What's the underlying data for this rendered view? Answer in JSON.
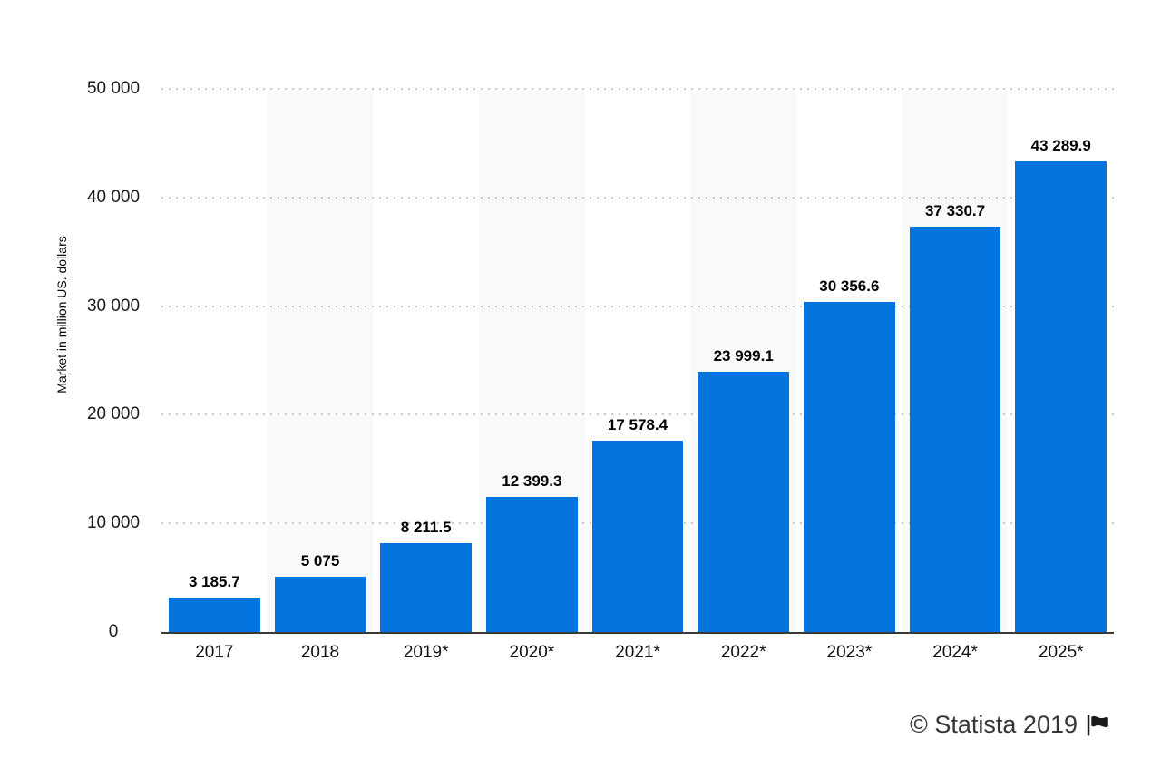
{
  "chart_data": {
    "type": "bar",
    "title": "",
    "categories": [
      "2017",
      "2018",
      "2019*",
      "2020*",
      "2021*",
      "2022*",
      "2023*",
      "2024*",
      "2025*"
    ],
    "values": [
      3185.7,
      5075,
      8211.5,
      12399.3,
      17578.4,
      23999.1,
      30356.6,
      37330.7,
      43289.9
    ],
    "value_labels": [
      "3 185.7",
      "5 075",
      "8 211.5",
      "12 399.3",
      "17 578.4",
      "23 999.1",
      "30 356.6",
      "37 330.7",
      "43 289.9"
    ],
    "xlabel": "",
    "ylabel": "Market in million US. dollars",
    "ylim": [
      0,
      50000
    ],
    "yticks": [
      {
        "value": 0,
        "label": "0"
      },
      {
        "value": 10000,
        "label": "10 000"
      },
      {
        "value": 20000,
        "label": "20 000"
      },
      {
        "value": 30000,
        "label": "30 000"
      },
      {
        "value": 40000,
        "label": "40 000"
      },
      {
        "value": 50000,
        "label": "50 000"
      }
    ],
    "grid": "horizontal-dotted",
    "legend": "none",
    "bar_color": "#0374de",
    "stripe_color": "#f9f9f9",
    "striped_columns": [
      1,
      3,
      5,
      7
    ]
  },
  "footer": {
    "attribution": "© Statista 2019",
    "flag_icon": "statista-flag-icon"
  }
}
